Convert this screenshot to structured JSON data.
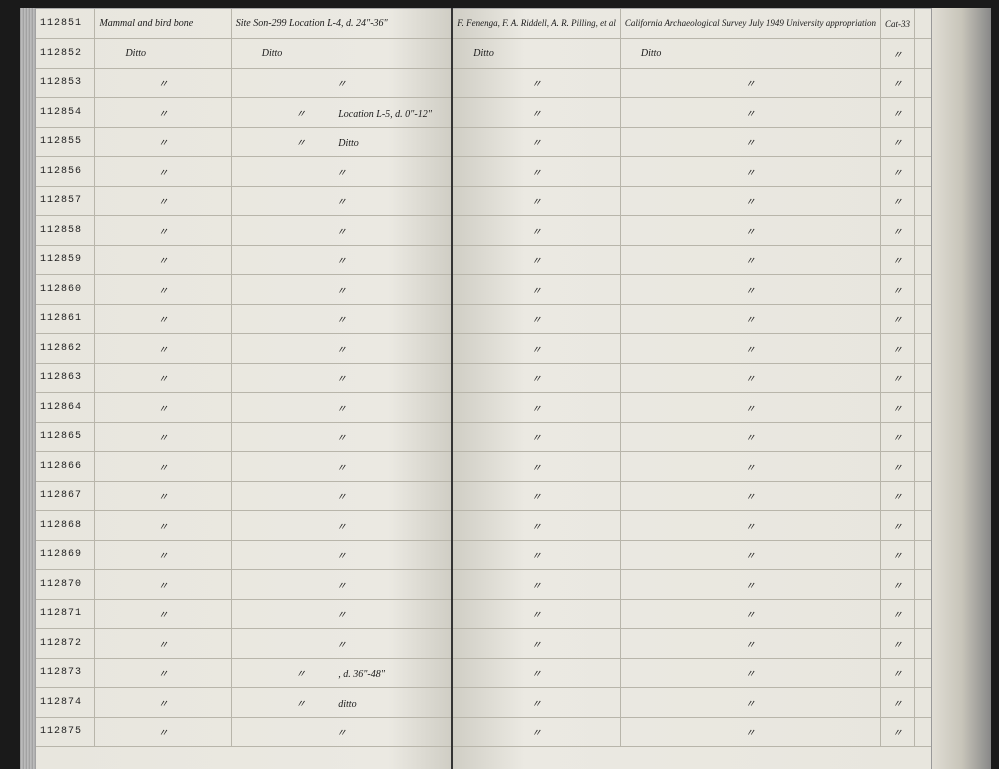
{
  "ledger": {
    "id_start": 112851,
    "id_end": 112875,
    "first_row": {
      "description": "Mammal and bird bone",
      "location": "Site Son-299 Location L-4, d. 24\"-36\"",
      "collector": "F. Fenenga, F. A. Riddell, A. R. Pilling, et al",
      "survey": "California Archaeological Survey July 1949 University appropriation",
      "ref": "Cat-33"
    },
    "ditto_text": "Ditto",
    "ditto_mark": "〃",
    "special_rows": {
      "112854": {
        "location": "Location L-5, d. 0\"-12\""
      },
      "112855": {
        "location": "Ditto"
      },
      "112873": {
        "location": ", d. 36\"-48\""
      },
      "112874": {
        "location": "ditto"
      }
    },
    "rows": [
      {
        "id": "112851"
      },
      {
        "id": "112852"
      },
      {
        "id": "112853"
      },
      {
        "id": "112854"
      },
      {
        "id": "112855"
      },
      {
        "id": "112856"
      },
      {
        "id": "112857"
      },
      {
        "id": "112858"
      },
      {
        "id": "112859"
      },
      {
        "id": "112860"
      },
      {
        "id": "112861"
      },
      {
        "id": "112862"
      },
      {
        "id": "112863"
      },
      {
        "id": "112864"
      },
      {
        "id": "112865"
      },
      {
        "id": "112866"
      },
      {
        "id": "112867"
      },
      {
        "id": "112868"
      },
      {
        "id": "112869"
      },
      {
        "id": "112870"
      },
      {
        "id": "112871"
      },
      {
        "id": "112872"
      },
      {
        "id": "112873"
      },
      {
        "id": "112874"
      },
      {
        "id": "112875"
      }
    ]
  },
  "styling": {
    "page_bg": "#e8e6de",
    "line_color": "#b8b5aa",
    "ink_color": "#1a1a1a",
    "id_font": "Courier New",
    "cursive_font": "Brush Script MT",
    "row_height": 29.5,
    "id_fontsize": 13,
    "cursive_fontsize": 11
  }
}
